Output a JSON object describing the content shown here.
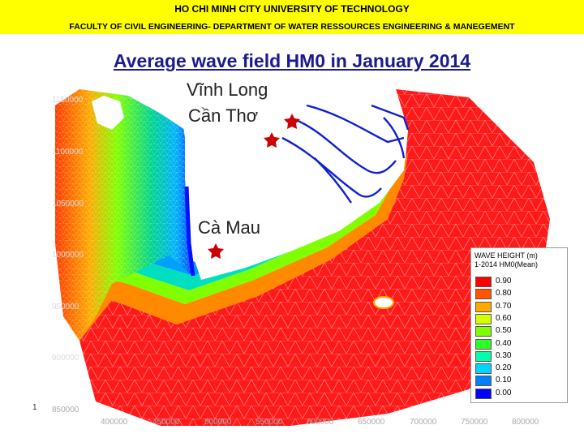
{
  "header": {
    "line1": "HO CHI MINH CITY UNIVERSITY OF TECHNOLOGY",
    "line2": "FACULTY OF CIVIL ENGINEERING- DEPARTMENT OF WATER RESSOURCES ENGINEERING & MANEGEMENT",
    "background": "#ffff00"
  },
  "title": "Average wave field HM0 in January 2014",
  "cities": [
    {
      "name": "Vĩnh Long"
    },
    {
      "name": "Cần Thơ"
    },
    {
      "name": "Cà Mau"
    }
  ],
  "slide_number": "1",
  "legend": {
    "title_line1": "WAVE HEIGHT (m)",
    "title_line2": "1-2014  HM0(Mean)",
    "items": [
      {
        "value": "0.90",
        "color": "#ff0000"
      },
      {
        "value": "0.80",
        "color": "#ff5500"
      },
      {
        "value": "0.70",
        "color": "#ffaa00"
      },
      {
        "value": "0.60",
        "color": "#d4ff00"
      },
      {
        "value": "0.50",
        "color": "#7fff00"
      },
      {
        "value": "0.40",
        "color": "#2aff2a"
      },
      {
        "value": "0.30",
        "color": "#00ffaa"
      },
      {
        "value": "0.20",
        "color": "#00d4ff"
      },
      {
        "value": "0.10",
        "color": "#0080ff"
      },
      {
        "value": "0.00",
        "color": "#0000ff"
      }
    ]
  },
  "axes": {
    "y_ticks": [
      "1150000",
      "1100000",
      "1050000",
      "1000000",
      "950000",
      "900000",
      "850000"
    ],
    "x_ticks": [
      "400000",
      "450000",
      "500000",
      "550000",
      "600000",
      "650000",
      "700000",
      "750000",
      "800000"
    ]
  }
}
